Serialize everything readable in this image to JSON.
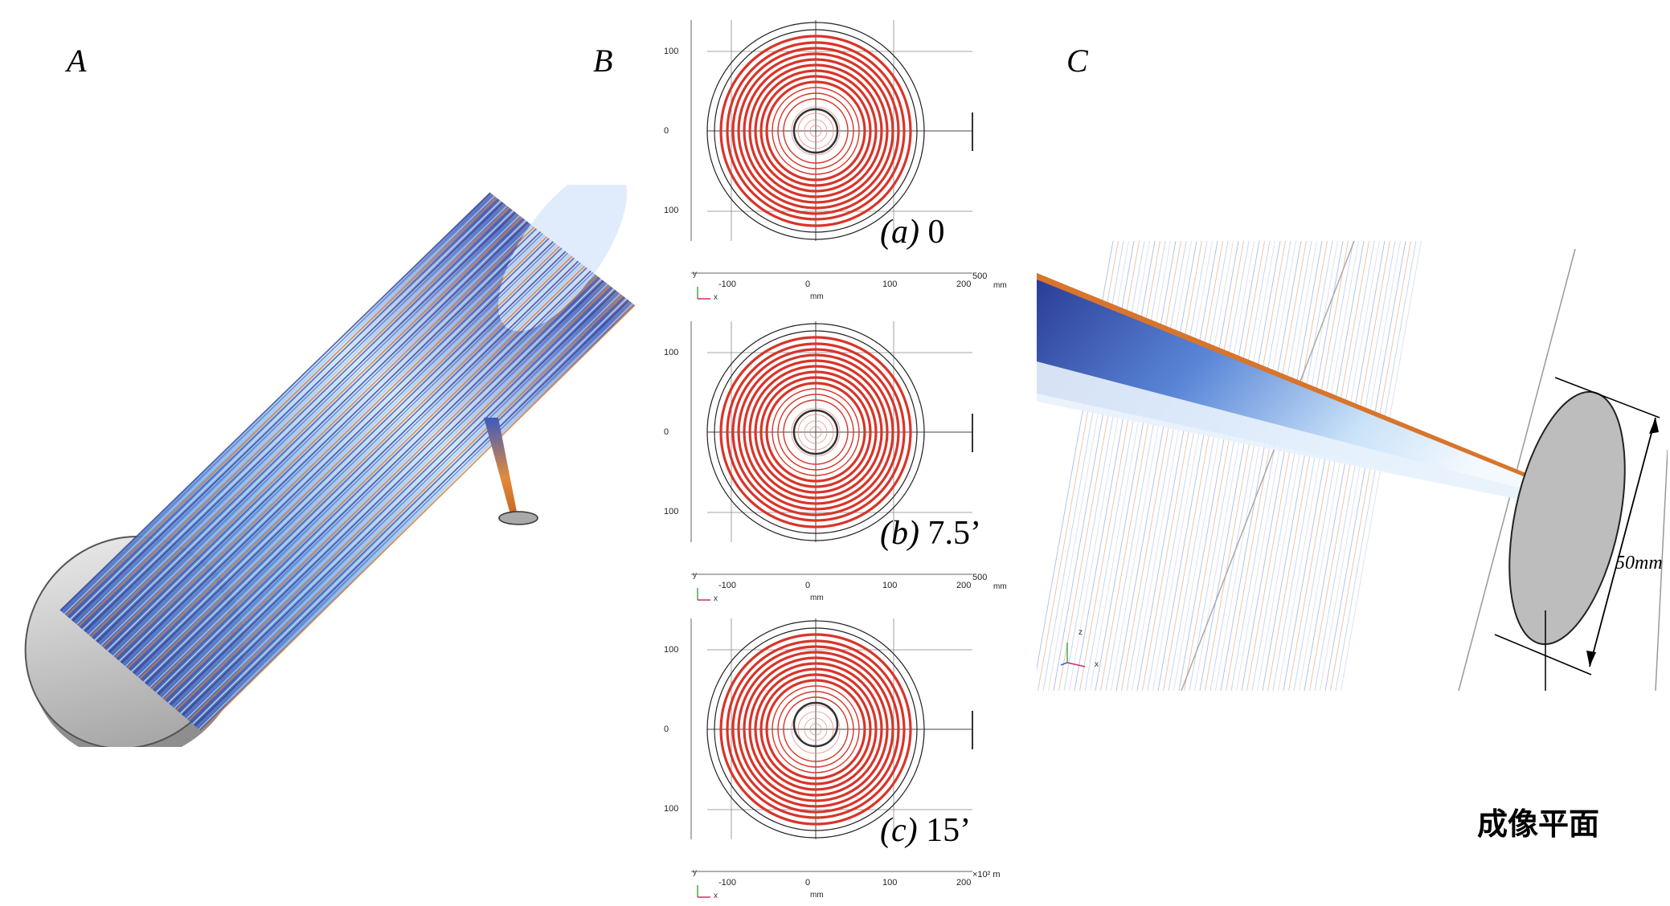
{
  "panels": {
    "a_letter": "A",
    "b_letter": "B",
    "c_letter": "C"
  },
  "subplots": [
    {
      "caption_prefix": "(a)",
      "caption_value": "0",
      "yticks": [
        "100",
        "0",
        "100"
      ],
      "xticks": [
        "-100",
        "0",
        "100",
        "200"
      ],
      "corner_tick": "500",
      "unit": "mm",
      "xunit": "mm"
    },
    {
      "caption_prefix": "(b)",
      "caption_value": "7.5’",
      "yticks": [
        "100",
        "0",
        "100"
      ],
      "xticks": [
        "-100",
        "0",
        "100",
        "200"
      ],
      "corner_tick": "500",
      "unit": "mm",
      "xunit": "mm"
    },
    {
      "caption_prefix": "(c)",
      "caption_value": "15’",
      "yticks": [
        "100",
        "0",
        "100"
      ],
      "xticks": [
        "-100",
        "0",
        "100",
        "200"
      ],
      "corner_tick": "×10² m",
      "unit": "",
      "xunit": "mm"
    }
  ],
  "axes": {
    "y": "y",
    "x": "x",
    "z": "z"
  },
  "panel_c": {
    "dimension": "50mm",
    "image_plane_label": "成像平面"
  },
  "colors": {
    "ring": "#d8352a",
    "frame": "#333333",
    "ray_dark": "#2b3a8f",
    "ray_light": "#9cc7ee",
    "ray_orange": "#e07a2a",
    "plane": "#b5b5b5"
  }
}
